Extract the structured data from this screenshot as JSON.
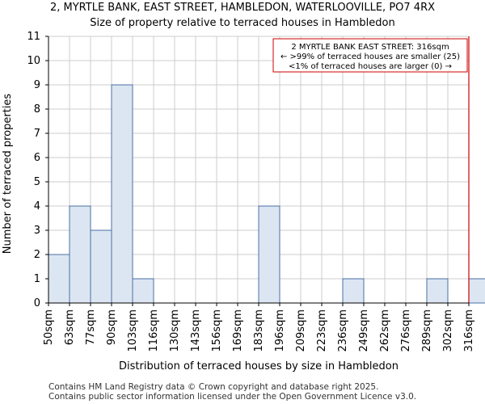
{
  "chart_data": {
    "type": "bar",
    "title": "2, MYRTLE BANK, EAST STREET, HAMBLEDON, WATERLOOVILLE, PO7 4RX",
    "subtitle": "Size of property relative to terraced houses in Hambledon",
    "xlabel": "Distribution of terraced houses by size in Hambledon",
    "ylabel": "Number of terraced properties",
    "categories": [
      "50sqm",
      "63sqm",
      "77sqm",
      "90sqm",
      "103sqm",
      "116sqm",
      "130sqm",
      "143sqm",
      "156sqm",
      "169sqm",
      "183sqm",
      "196sqm",
      "209sqm",
      "223sqm",
      "236sqm",
      "249sqm",
      "262sqm",
      "276sqm",
      "289sqm",
      "302sqm",
      "316sqm"
    ],
    "values": [
      2,
      4,
      3,
      9,
      1,
      0,
      0,
      0,
      0,
      0,
      4,
      0,
      0,
      0,
      1,
      0,
      0,
      0,
      1,
      0,
      1
    ],
    "ylim": [
      0,
      11
    ],
    "yticks": [
      0,
      1,
      2,
      3,
      4,
      5,
      6,
      7,
      8,
      9,
      10,
      11
    ],
    "grid": true,
    "bar_color": "#dce6f2",
    "bar_edge_color": "#4a6fa5",
    "marker": {
      "value_index": 20,
      "color": "#cc0000"
    },
    "annotation": {
      "line1": "2 MYRTLE BANK EAST STREET: 316sqm",
      "line2": "← >99% of terraced houses are smaller (25)",
      "line3": "<1% of terraced houses are larger (0) →"
    }
  },
  "footer": {
    "line1": "Contains HM Land Registry data © Crown copyright and database right 2025.",
    "line2": "Contains public sector information licensed under the Open Government Licence v3.0."
  }
}
